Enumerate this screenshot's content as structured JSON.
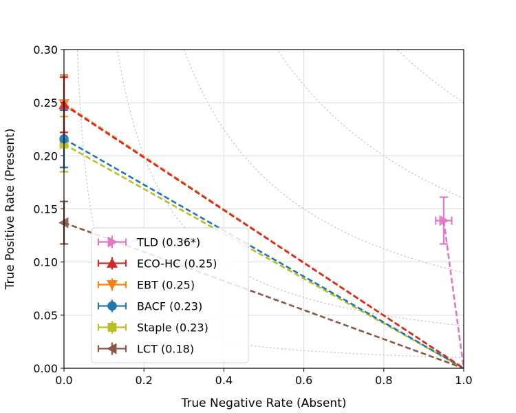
{
  "chart_data": {
    "type": "scatter",
    "xlabel": "True Negative Rate (Absent)",
    "ylabel": "True Positive Rate (Present)",
    "xlim": [
      0.0,
      1.0
    ],
    "ylim": [
      0.0,
      0.3
    ],
    "xticks": [
      "0.0",
      "0.2",
      "0.4",
      "0.6",
      "0.8",
      "1.0"
    ],
    "yticks": [
      "0.00",
      "0.05",
      "0.10",
      "0.15",
      "0.20",
      "0.25",
      "0.30"
    ],
    "grid": true,
    "legend_position": "bottom-left",
    "iso_curves": [
      0.1,
      0.2,
      0.3,
      0.4,
      0.5,
      0.6
    ],
    "series": [
      {
        "name": "TLD (0.36*)",
        "x": 0.95,
        "y": 0.139,
        "x_err": 0.02,
        "y_err": 0.022,
        "color": "#e377c2",
        "marker": "triangle-right"
      },
      {
        "name": "ECO-HC (0.25)",
        "x": 0.0,
        "y": 0.248,
        "x_err": 0.0,
        "y_err": 0.026,
        "color": "#d62728",
        "marker": "triangle-up"
      },
      {
        "name": "EBT (0.25)",
        "x": 0.0,
        "y": 0.249,
        "x_err": 0.0,
        "y_err": 0.027,
        "color": "#ff7f0e",
        "marker": "triangle-down"
      },
      {
        "name": "BACF (0.23)",
        "x": 0.0,
        "y": 0.216,
        "x_err": 0.0,
        "y_err": 0.027,
        "color": "#1f77b4",
        "marker": "circle"
      },
      {
        "name": "Staple (0.23)",
        "x": 0.0,
        "y": 0.211,
        "x_err": 0.0,
        "y_err": 0.026,
        "color": "#bcbd22",
        "marker": "square"
      },
      {
        "name": "LCT (0.18)",
        "x": 0.0,
        "y": 0.137,
        "x_err": 0.0,
        "y_err": 0.02,
        "color": "#8c564b",
        "marker": "triangle-left"
      }
    ]
  }
}
